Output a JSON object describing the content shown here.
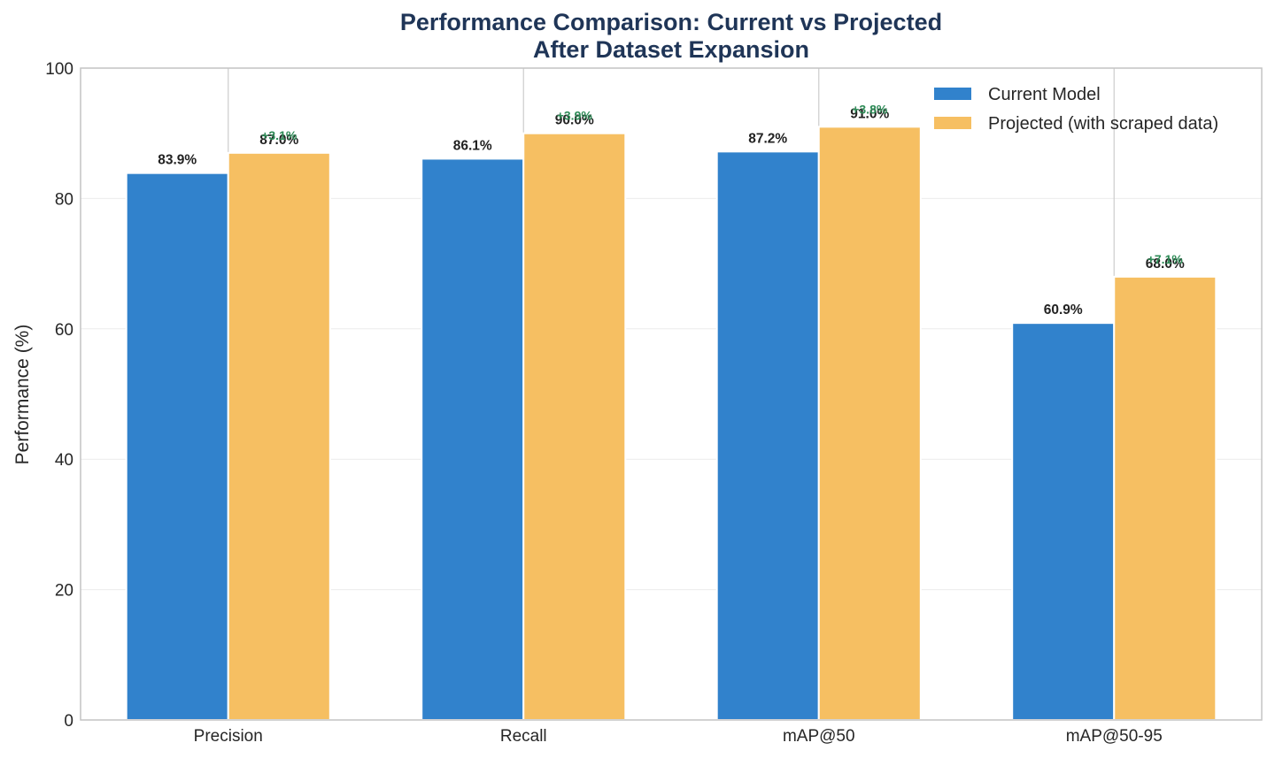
{
  "chart_data": {
    "type": "bar",
    "title_lines": [
      "Performance Comparison: Current vs Projected",
      "After Dataset Expansion"
    ],
    "xlabel": "",
    "ylabel": "Performance (%)",
    "ylim": [
      0,
      100
    ],
    "yticks": [
      0,
      20,
      40,
      60,
      80,
      100
    ],
    "categories": [
      "Precision",
      "Recall",
      "mAP@50",
      "mAP@50-95"
    ],
    "series": [
      {
        "name": "Current Model",
        "color": "#3182cc",
        "values": [
          83.9,
          86.1,
          87.2,
          60.9
        ],
        "labels": [
          "83.9%",
          "86.1%",
          "87.2%",
          "60.9%"
        ]
      },
      {
        "name": "Projected (with scraped data)",
        "color": "#f6bf62",
        "values": [
          87.0,
          90.0,
          91.0,
          68.0
        ],
        "labels": [
          "87.0%",
          "90.0%",
          "91.0%",
          "68.0%"
        ]
      }
    ],
    "deltas": [
      "+3.1%",
      "+3.9%",
      "+3.8%",
      "+7.1%"
    ],
    "delta_color": "#2e8b57",
    "grid": true,
    "legend_position": "top-right"
  }
}
